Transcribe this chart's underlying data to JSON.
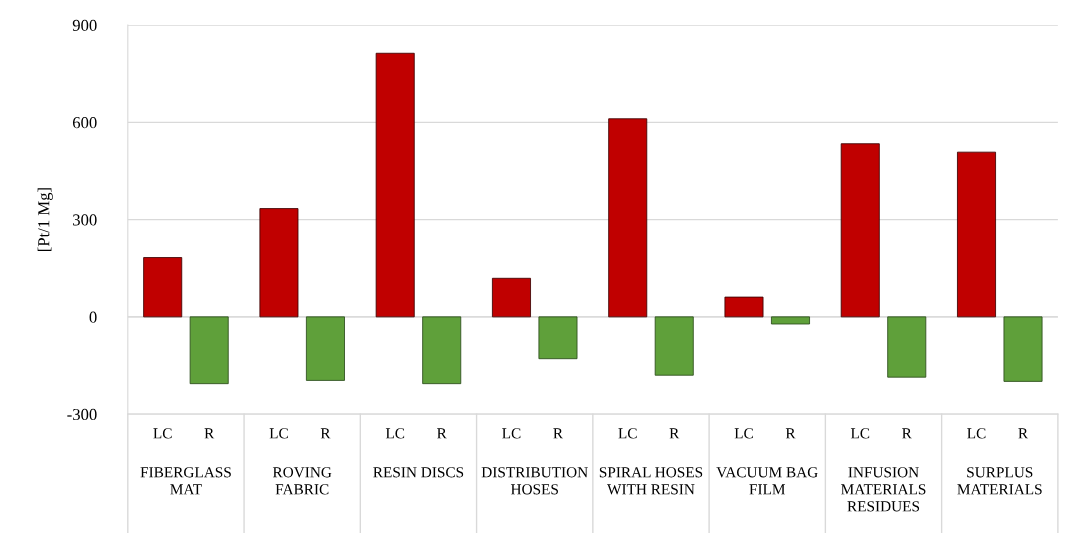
{
  "chart_data": {
    "type": "bar",
    "ylabel": "[Pt/1 Mg]",
    "categories": [
      "FIBERGLASS\nMAT",
      "ROVING\nFABRIC",
      "RESIN DISCS",
      "DISTRIBUTION\nHOSES",
      "SPIRAL HOSES\nWITH RESIN",
      "VACUUM BAG\nFILM",
      "INFUSION\nMATERIALS\nRESIDUES",
      "SURPLUS\nMATERIALS"
    ],
    "series": [
      {
        "name": "LC",
        "color": "#c00000",
        "values": [
          183,
          334,
          813,
          119,
          611,
          61,
          534,
          508
        ]
      },
      {
        "name": "R",
        "color": "#5fa03a",
        "values": [
          -206,
          -196,
          -206,
          -129,
          -180,
          -22,
          -186,
          -199
        ]
      }
    ],
    "ylim": [
      -300,
      900
    ],
    "yticks": [
      -300,
      0,
      300,
      600,
      900
    ],
    "grid": "y",
    "legend": false
  }
}
